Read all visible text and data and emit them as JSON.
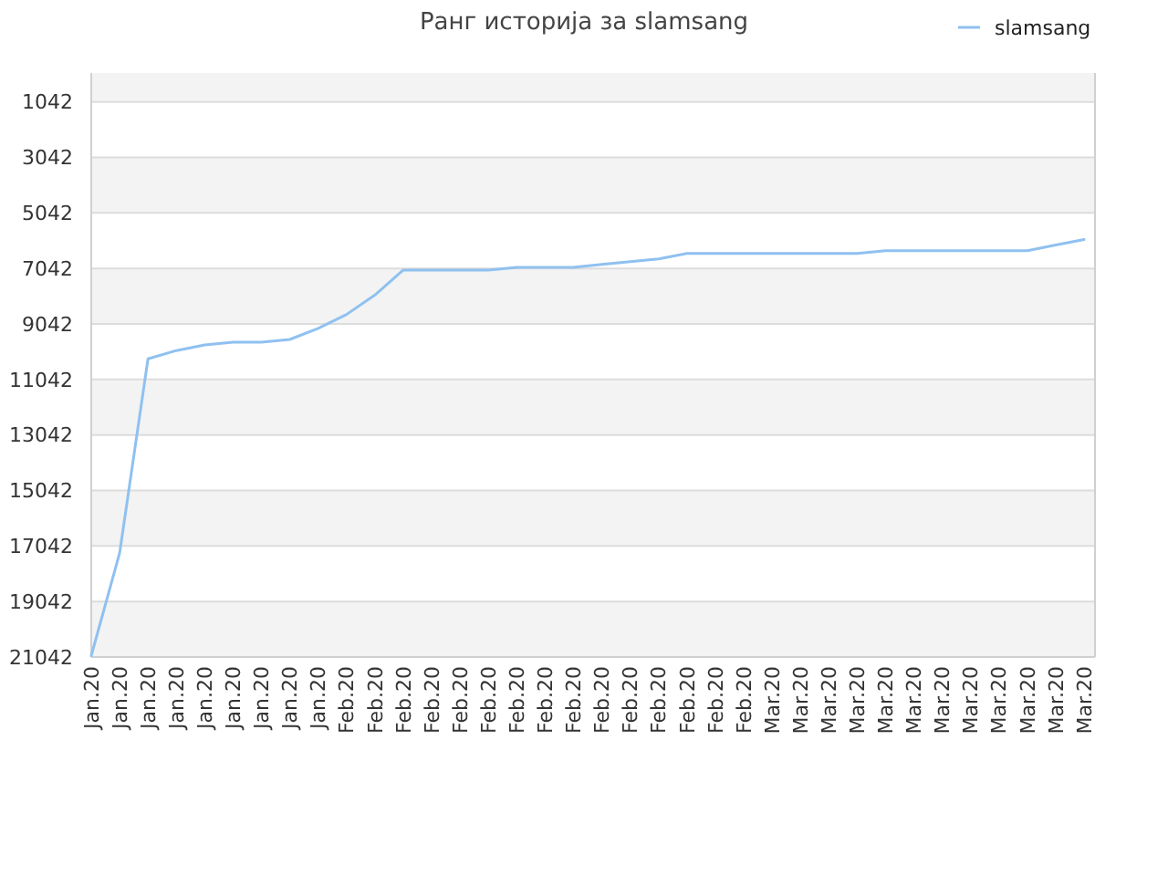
{
  "chart_data": {
    "type": "line",
    "title": "Ранг историја за slamsang",
    "categories": [
      "Jan.20",
      "Jan.20",
      "Jan.20",
      "Jan.20",
      "Jan.20",
      "Jan.20",
      "Jan.20",
      "Jan.20",
      "Jan.20",
      "Feb.20",
      "Feb.20",
      "Feb.20",
      "Feb.20",
      "Feb.20",
      "Feb.20",
      "Feb.20",
      "Feb.20",
      "Feb.20",
      "Feb.20",
      "Feb.20",
      "Feb.20",
      "Feb.20",
      "Feb.20",
      "Feb.20",
      "Mar.20",
      "Mar.20",
      "Mar.20",
      "Mar.20",
      "Mar.20",
      "Mar.20",
      "Mar.20",
      "Mar.20",
      "Mar.20",
      "Mar.20",
      "Mar.20",
      "Mar.20"
    ],
    "ylim": [
      21042,
      0
    ],
    "yticks": [
      1042,
      3042,
      5042,
      7042,
      9042,
      11042,
      13042,
      15042,
      17042,
      19042,
      21042
    ],
    "grid": "y",
    "legend": "top right",
    "marker": "none",
    "line_style": "solid",
    "series": [
      {
        "name": "slamsang",
        "color": "#8fc1f0",
        "values": [
          21000,
          17300,
          10300,
          10000,
          9800,
          9700,
          9700,
          9600,
          9200,
          8700,
          8000,
          7100,
          7100,
          7100,
          7100,
          7000,
          7000,
          7000,
          6900,
          6800,
          6700,
          6500,
          6500,
          6500,
          6500,
          6500,
          6500,
          6500,
          6400,
          6400,
          6400,
          6400,
          6400,
          6400,
          6200,
          6000
        ]
      }
    ]
  }
}
